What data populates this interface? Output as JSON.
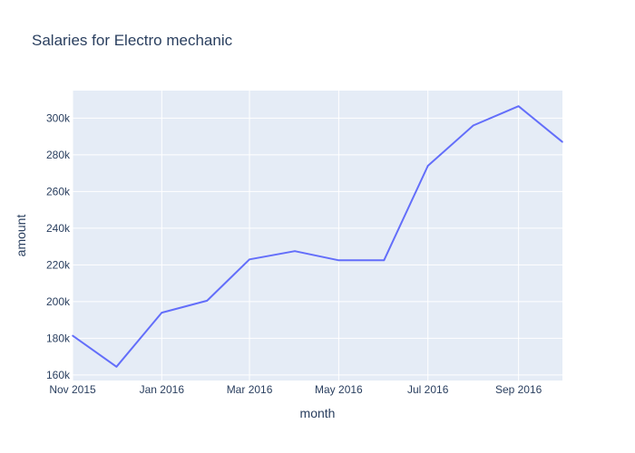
{
  "chart_data": {
    "type": "line",
    "title": "Salaries for Electro mechanic",
    "xlabel": "month",
    "ylabel": "amount",
    "x": [
      "2015-11-01",
      "2015-12-01",
      "2016-01-01",
      "2016-02-01",
      "2016-03-01",
      "2016-04-01",
      "2016-05-01",
      "2016-06-01",
      "2016-07-01",
      "2016-08-01",
      "2016-09-01",
      "2016-10-01"
    ],
    "values": [
      181500,
      164500,
      194000,
      200500,
      223000,
      227500,
      222500,
      222500,
      274000,
      296000,
      306500,
      287000
    ],
    "xlim": [
      "2015-11-01",
      "2016-10-01"
    ],
    "ylim": [
      157000,
      315000
    ],
    "x_ticks": [
      {
        "date": "2015-11-01",
        "label": "Nov 2015"
      },
      {
        "date": "2016-01-01",
        "label": "Jan 2016"
      },
      {
        "date": "2016-03-01",
        "label": "Mar 2016"
      },
      {
        "date": "2016-05-01",
        "label": "May 2016"
      },
      {
        "date": "2016-07-01",
        "label": "Jul 2016"
      },
      {
        "date": "2016-09-01",
        "label": "Sep 2016"
      }
    ],
    "y_ticks": [
      {
        "value": 160000,
        "label": "160k"
      },
      {
        "value": 180000,
        "label": "180k"
      },
      {
        "value": 200000,
        "label": "200k"
      },
      {
        "value": 220000,
        "label": "220k"
      },
      {
        "value": 240000,
        "label": "240k"
      },
      {
        "value": 260000,
        "label": "260k"
      },
      {
        "value": 280000,
        "label": "280k"
      },
      {
        "value": 300000,
        "label": "300k"
      }
    ],
    "grid": true,
    "legend": "none",
    "colors": {
      "line": "#636efa",
      "plot_bg": "#e5ecf6",
      "grid": "#ffffff",
      "text": "#2a3f5f"
    }
  }
}
